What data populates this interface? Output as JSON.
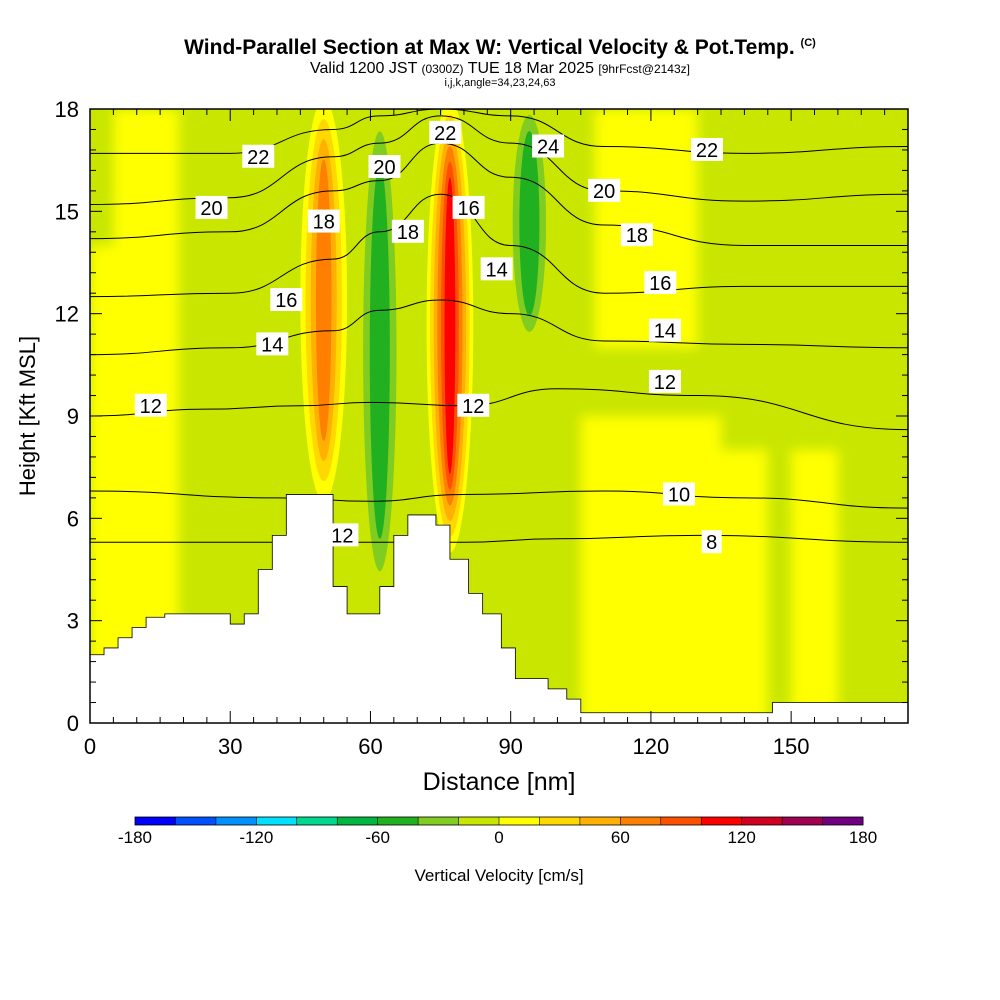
{
  "chart_data": {
    "type": "heatmap",
    "title": "Wind-Parallel Section at Max W: Vertical Velocity & Pot.Temp.",
    "title_mark": "(C)",
    "subtitle_main": "Valid 1200 JST",
    "subtitle_utc": "(0300Z)",
    "subtitle_date": "TUE 18 Mar 2025",
    "subtitle_fcst": "[9hrFcst@2143z]",
    "subtitle2": "i,j,k,angle=34,23,24,63",
    "xlabel": "Distance [nm]",
    "ylabel": "Height [Kft MSL]",
    "xlim": [
      0,
      175
    ],
    "ylim": [
      0,
      18
    ],
    "xticks": [
      0,
      30,
      60,
      90,
      120,
      150
    ],
    "yticks": [
      0,
      3,
      6,
      9,
      12,
      15,
      18
    ],
    "colorbar": {
      "label": "Vertical Velocity [cm/s]",
      "range": [
        -180,
        180
      ],
      "step": 20,
      "tick_labels": [
        "-180",
        "-120",
        "-60",
        "0",
        "60",
        "120",
        "180"
      ],
      "tick_values": [
        -180,
        -120,
        -60,
        0,
        60,
        120,
        180
      ],
      "colors": [
        "#0000ff",
        "#0050ff",
        "#0090ff",
        "#00e0ff",
        "#00d890",
        "#00b840",
        "#20b020",
        "#80cc20",
        "#c8e600",
        "#ffff00",
        "#ffd800",
        "#ffb000",
        "#ff8000",
        "#ff5000",
        "#ff0000",
        "#d00020",
        "#a00050",
        "#700080"
      ]
    },
    "w_features": [
      {
        "x": 50,
        "y_bottom": 6.5,
        "y_top": 18,
        "w_cms": 70
      },
      {
        "x": 62,
        "y_bottom": 3.5,
        "y_top": 18,
        "w_cms": -50
      },
      {
        "x": 77,
        "y_bottom": 5,
        "y_top": 18,
        "w_cms": 120
      },
      {
        "x": 94,
        "y_bottom": 11,
        "y_top": 18,
        "w_cms": -60
      }
    ],
    "theta_contours": [
      {
        "level": 8,
        "points": [
          [
            0,
            5.3
          ],
          [
            40,
            5.3
          ],
          [
            80,
            5.3
          ],
          [
            100,
            5.4
          ],
          [
            130,
            5.5
          ],
          [
            175,
            5.3
          ]
        ]
      },
      {
        "level": 10,
        "points": [
          [
            0,
            6.8
          ],
          [
            40,
            6.6
          ],
          [
            60,
            6.5
          ],
          [
            80,
            6.7
          ],
          [
            110,
            6.8
          ],
          [
            140,
            6.6
          ],
          [
            175,
            6.3
          ]
        ]
      },
      {
        "level": 12,
        "points": [
          [
            0,
            9.0
          ],
          [
            25,
            9.2
          ],
          [
            45,
            9.3
          ],
          [
            60,
            9.4
          ],
          [
            80,
            9.3
          ],
          [
            100,
            9.8
          ],
          [
            130,
            9.6
          ],
          [
            175,
            8.6
          ]
        ]
      },
      {
        "level": 14,
        "points": [
          [
            0,
            10.8
          ],
          [
            30,
            11.0
          ],
          [
            52,
            11.5
          ],
          [
            62,
            12.1
          ],
          [
            75,
            12.4
          ],
          [
            90,
            12.0
          ],
          [
            110,
            11.2
          ],
          [
            140,
            11.1
          ],
          [
            175,
            11.0
          ]
        ]
      },
      {
        "level": 16,
        "points": [
          [
            0,
            12.5
          ],
          [
            30,
            12.6
          ],
          [
            52,
            13.6
          ],
          [
            62,
            14.4
          ],
          [
            75,
            15.5
          ],
          [
            90,
            14.0
          ],
          [
            110,
            12.6
          ],
          [
            140,
            12.8
          ],
          [
            175,
            12.8
          ]
        ]
      },
      {
        "level": 18,
        "points": [
          [
            0,
            14.2
          ],
          [
            30,
            14.4
          ],
          [
            52,
            15.6
          ],
          [
            62,
            15.9
          ],
          [
            75,
            17.0
          ],
          [
            90,
            16.0
          ],
          [
            110,
            14.6
          ],
          [
            140,
            14.0
          ],
          [
            175,
            14.0
          ]
        ]
      },
      {
        "level": 20,
        "points": [
          [
            0,
            15.2
          ],
          [
            30,
            15.4
          ],
          [
            52,
            16.6
          ],
          [
            62,
            17.0
          ],
          [
            75,
            17.8
          ],
          [
            90,
            17.0
          ],
          [
            110,
            15.6
          ],
          [
            140,
            15.3
          ],
          [
            175,
            15.5
          ]
        ]
      },
      {
        "level": 22,
        "points": [
          [
            0,
            16.7
          ],
          [
            30,
            16.7
          ],
          [
            52,
            17.4
          ],
          [
            62,
            17.8
          ],
          [
            75,
            18.0
          ],
          [
            90,
            17.8
          ],
          [
            110,
            16.9
          ],
          [
            140,
            16.7
          ],
          [
            175,
            16.9
          ]
        ]
      }
    ],
    "contour_labels": [
      {
        "text": "22",
        "x": 36,
        "y": 16.6
      },
      {
        "text": "20",
        "x": 26,
        "y": 15.1
      },
      {
        "text": "18",
        "x": 50,
        "y": 14.7
      },
      {
        "text": "16",
        "x": 42,
        "y": 12.4
      },
      {
        "text": "14",
        "x": 39,
        "y": 11.1
      },
      {
        "text": "12",
        "x": 13,
        "y": 9.3
      },
      {
        "text": "12",
        "x": 54,
        "y": 5.5
      },
      {
        "text": "20",
        "x": 63,
        "y": 16.3
      },
      {
        "text": "22",
        "x": 76,
        "y": 17.3
      },
      {
        "text": "18",
        "x": 68,
        "y": 14.4
      },
      {
        "text": "16",
        "x": 81,
        "y": 15.1
      },
      {
        "text": "14",
        "x": 87,
        "y": 13.3
      },
      {
        "text": "12",
        "x": 82,
        "y": 9.3
      },
      {
        "text": "24",
        "x": 98,
        "y": 16.9
      },
      {
        "text": "20",
        "x": 110,
        "y": 15.6
      },
      {
        "text": "18",
        "x": 117,
        "y": 14.3
      },
      {
        "text": "16",
        "x": 122,
        "y": 12.9
      },
      {
        "text": "14",
        "x": 123,
        "y": 11.5
      },
      {
        "text": "12",
        "x": 123,
        "y": 10.0
      },
      {
        "text": "22",
        "x": 132,
        "y": 16.8
      },
      {
        "text": "10",
        "x": 126,
        "y": 6.7
      },
      {
        "text": "8",
        "x": 133,
        "y": 5.3
      }
    ],
    "terrain": [
      [
        0,
        2.0
      ],
      [
        3,
        2.0
      ],
      [
        3,
        2.2
      ],
      [
        6,
        2.2
      ],
      [
        6,
        2.5
      ],
      [
        9,
        2.5
      ],
      [
        9,
        2.8
      ],
      [
        12,
        2.8
      ],
      [
        12,
        3.1
      ],
      [
        16,
        3.1
      ],
      [
        16,
        3.2
      ],
      [
        30,
        3.2
      ],
      [
        30,
        2.9
      ],
      [
        33,
        2.9
      ],
      [
        33,
        3.2
      ],
      [
        36,
        3.2
      ],
      [
        36,
        4.5
      ],
      [
        39,
        4.5
      ],
      [
        39,
        5.5
      ],
      [
        42,
        5.5
      ],
      [
        42,
        6.7
      ],
      [
        52,
        6.7
      ],
      [
        52,
        4.0
      ],
      [
        55,
        4.0
      ],
      [
        55,
        3.2
      ],
      [
        62,
        3.2
      ],
      [
        62,
        4.0
      ],
      [
        65,
        4.0
      ],
      [
        65,
        5.5
      ],
      [
        68,
        5.5
      ],
      [
        68,
        6.1
      ],
      [
        74,
        6.1
      ],
      [
        74,
        5.8
      ],
      [
        77,
        5.8
      ],
      [
        77,
        4.8
      ],
      [
        81,
        4.8
      ],
      [
        81,
        3.8
      ],
      [
        84,
        3.8
      ],
      [
        84,
        3.2
      ],
      [
        88,
        3.2
      ],
      [
        88,
        2.2
      ],
      [
        91,
        2.2
      ],
      [
        91,
        1.3
      ],
      [
        98,
        1.3
      ],
      [
        98,
        1.0
      ],
      [
        102,
        1.0
      ],
      [
        102,
        0.7
      ],
      [
        105,
        0.7
      ],
      [
        105,
        0.3
      ],
      [
        146,
        0.3
      ],
      [
        146,
        0.6
      ],
      [
        175,
        0.6
      ]
    ]
  }
}
